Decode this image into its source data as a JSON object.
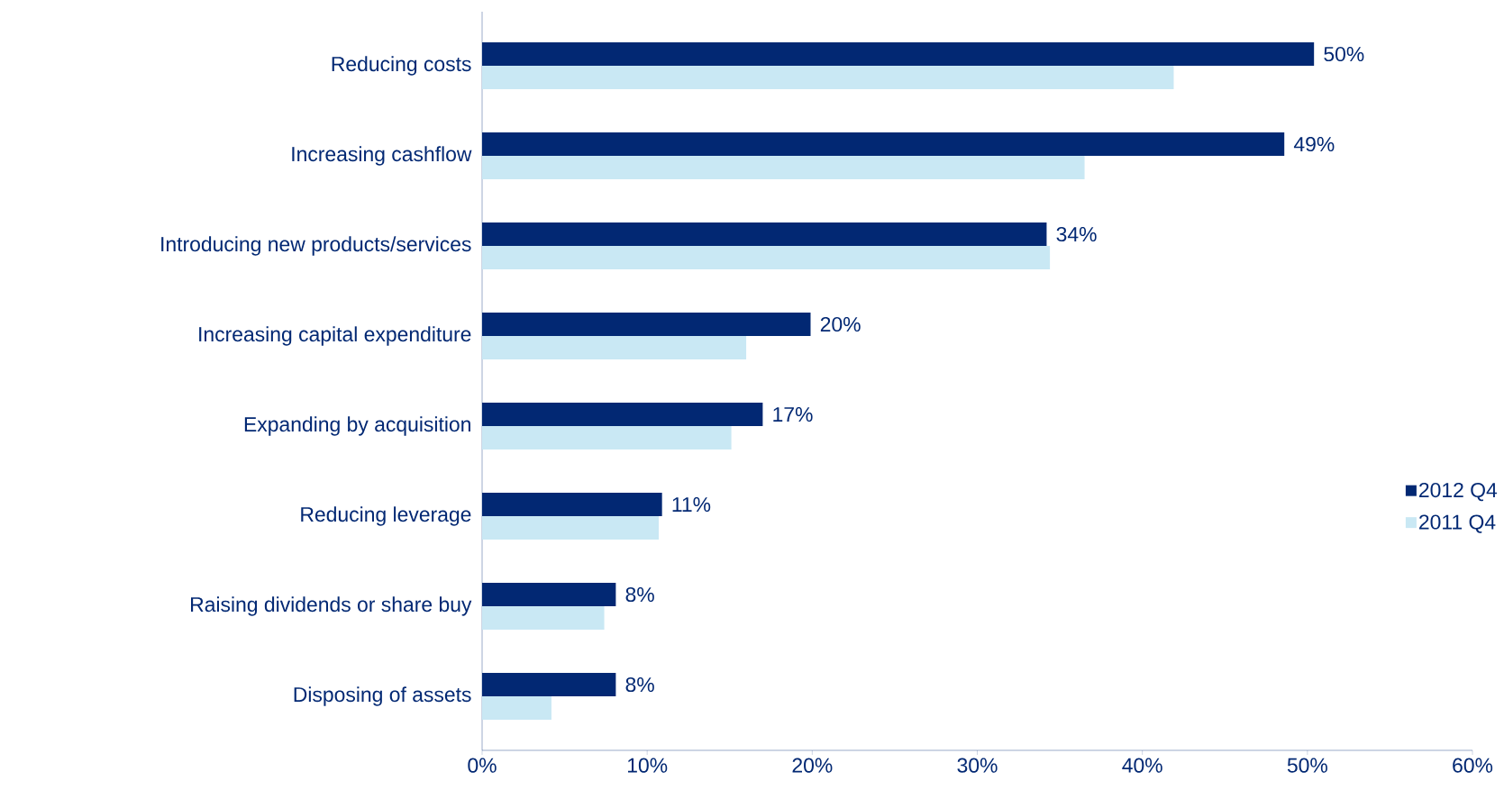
{
  "chart_data": {
    "type": "bar",
    "orientation": "horizontal",
    "categories": [
      "Reducing costs",
      "Increasing cashflow",
      "Introducing new products/services",
      "Increasing capital expenditure",
      "Expanding by acquisition",
      "Reducing leverage",
      "Raising dividends or share buy",
      "Disposing of assets"
    ],
    "series": [
      {
        "name": "2012 Q4",
        "color": "#022873",
        "values": [
          50.4,
          48.6,
          34.2,
          19.9,
          17.0,
          10.9,
          8.1,
          8.1
        ],
        "value_labels": [
          "50%",
          "49%",
          "34%",
          "20%",
          "17%",
          "11%",
          "8%",
          "8%"
        ]
      },
      {
        "name": "2011 Q4",
        "color": "#c9e8f4",
        "values": [
          41.9,
          36.5,
          34.4,
          16.0,
          15.1,
          10.7,
          7.4,
          4.2
        ]
      }
    ],
    "xlim": [
      0,
      60
    ],
    "xticks": [
      {
        "value": 0,
        "label": "0%"
      },
      {
        "value": 10,
        "label": "10%"
      },
      {
        "value": 20,
        "label": "20%"
      },
      {
        "value": 30,
        "label": "30%"
      },
      {
        "value": 40,
        "label": "40%"
      },
      {
        "value": 50,
        "label": "50%"
      },
      {
        "value": 60,
        "label": "60%"
      }
    ],
    "grid": false,
    "legend": "right"
  }
}
